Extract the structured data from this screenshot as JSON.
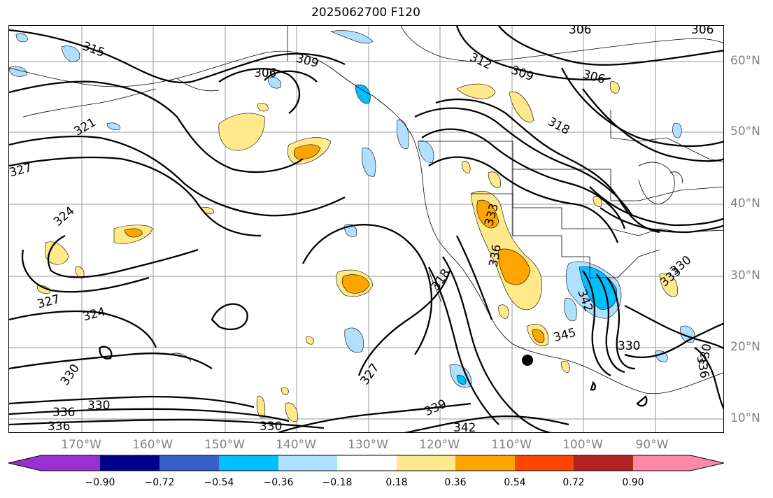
{
  "title": "2025062700 F120",
  "colors": {
    "contour": "#000000",
    "axis_label": "#808080",
    "neg_strong": "#00bfff",
    "neg_light": "#b0e0ff",
    "pos_light": "#ffe98a",
    "pos_strong": "#ffa500"
  },
  "latitude_labels": [
    "60°N",
    "50°N",
    "40°N",
    "30°N",
    "20°N",
    "10°N"
  ],
  "longitude_labels": [
    "170°W",
    "160°W",
    "150°W",
    "140°W",
    "130°W",
    "120°W",
    "110°W",
    "100°W",
    "90°W"
  ],
  "contour_labels": [
    "315",
    "309",
    "306",
    "312",
    "309",
    "306",
    "306",
    "306",
    "321",
    "318",
    "327",
    "324",
    "327",
    "324",
    "333",
    "336",
    "318",
    "333",
    "330",
    "342",
    "345",
    "330",
    "330",
    "327",
    "339",
    "342",
    "336",
    "336",
    "336",
    "330"
  ],
  "colorbar": {
    "ticks": [
      "−0.90",
      "−0.72",
      "−0.54",
      "−0.36",
      "−0.18",
      "0.18",
      "0.36",
      "0.54",
      "0.72",
      "0.90"
    ],
    "segment_colors": [
      "#9b30d0",
      "#00008b",
      "#3a5fcd",
      "#00bfff",
      "#b0e0ff",
      "#ffffff",
      "#ffe98a",
      "#ffa500",
      "#ff4500",
      "#b22222",
      "#ff88aa"
    ]
  }
}
